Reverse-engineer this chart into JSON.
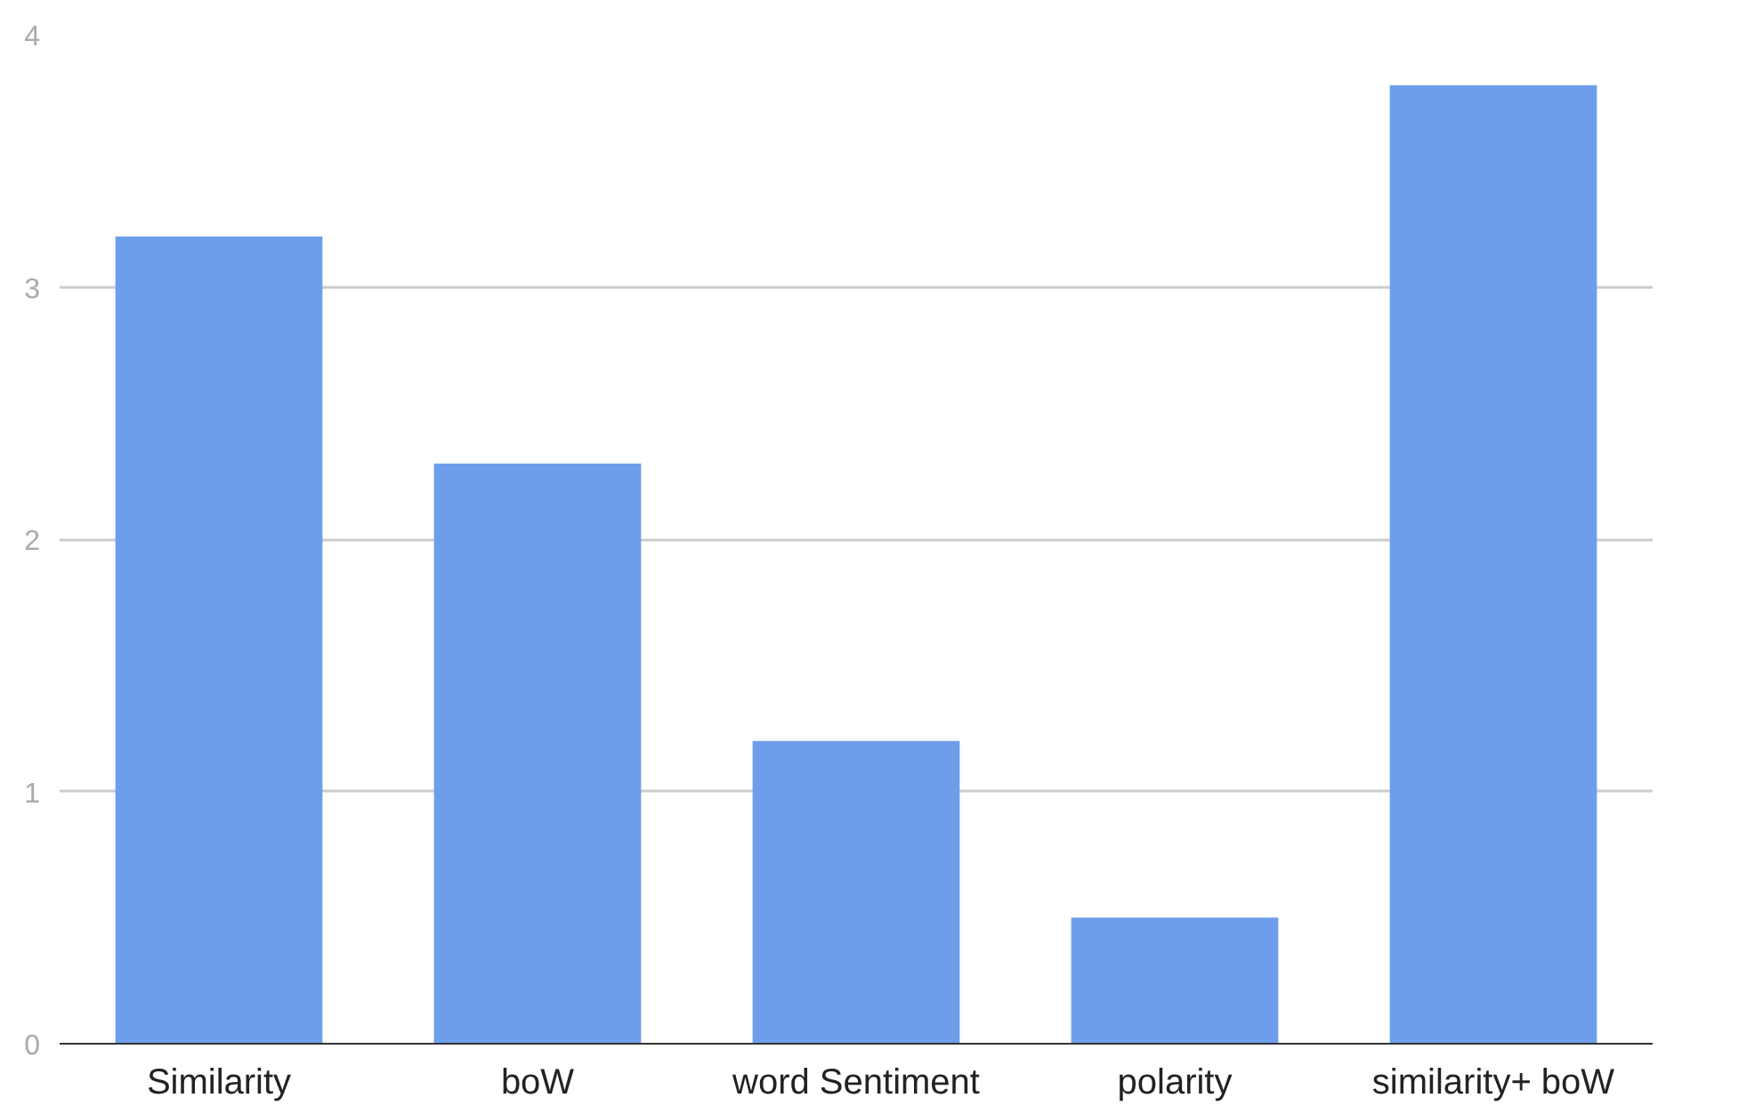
{
  "chart_data": {
    "type": "bar",
    "categories": [
      "Similarity",
      "boW",
      "word Sentiment",
      "polarity",
      "similarity+ boW"
    ],
    "values": [
      3.2,
      2.3,
      1.2,
      0.5,
      3.8
    ],
    "color": "#6d9eeb",
    "ylim": [
      0,
      4
    ],
    "yticks": [
      0,
      1,
      2,
      3,
      4
    ],
    "grid": "y"
  }
}
